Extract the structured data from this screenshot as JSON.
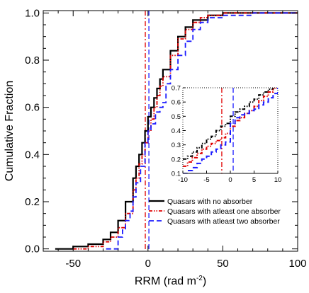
{
  "chart_data": [
    {
      "type": "line",
      "xlabel": "RRM (rad m",
      "xlabel_sup": "-2",
      "xlabel_close": ")",
      "ylabel": "Cumulative Fraction",
      "xlim": [
        -70,
        100
      ],
      "ylim": [
        -0.01,
        1.01
      ],
      "xticks": [
        -50,
        0,
        50,
        100
      ],
      "xtick_labels": [
        "-50",
        "0",
        "50",
        "100"
      ],
      "yticks": [
        0.0,
        0.2,
        0.4,
        0.6,
        0.8,
        1.0
      ],
      "ytick_labels": [
        "0.0",
        "0.2",
        "0.4",
        "0.6",
        "0.8",
        "1.0"
      ],
      "legend_position": "lower-right",
      "series": [
        {
          "name": "Quasars with no absorber",
          "color": "#000000",
          "style": "solid",
          "x": [
            -62,
            -50,
            -40,
            -30,
            -25,
            -20,
            -15,
            -10,
            -8,
            -6,
            -4,
            -2,
            0,
            2,
            4,
            6,
            8,
            10,
            15,
            20,
            25,
            30,
            40,
            50,
            60,
            100
          ],
          "y": [
            0.0,
            0.01,
            0.02,
            0.04,
            0.07,
            0.12,
            0.2,
            0.3,
            0.35,
            0.4,
            0.45,
            0.5,
            0.56,
            0.6,
            0.64,
            0.68,
            0.72,
            0.76,
            0.84,
            0.9,
            0.94,
            0.97,
            0.99,
            1.0,
            1.0,
            1.0
          ]
        },
        {
          "name": "Quasars with atleast one absorber",
          "color": "#e00000",
          "style": "dash-dot-dot",
          "x": [
            -50,
            -40,
            -30,
            -25,
            -20,
            -15,
            -10,
            -8,
            -6,
            -4,
            -2,
            0,
            2,
            4,
            6,
            8,
            10,
            15,
            20,
            25,
            30,
            35,
            40,
            50,
            100
          ],
          "y": [
            0.0,
            0.01,
            0.03,
            0.05,
            0.09,
            0.15,
            0.25,
            0.3,
            0.36,
            0.4,
            0.45,
            0.5,
            0.55,
            0.6,
            0.65,
            0.69,
            0.73,
            0.82,
            0.89,
            0.93,
            0.96,
            0.98,
            0.99,
            1.0,
            1.0
          ]
        },
        {
          "name": "Quasars with atleast two absorber",
          "color": "#1c1cff",
          "style": "dashed",
          "x": [
            -28,
            -20,
            -17,
            -15,
            -12,
            -10,
            -8,
            -5,
            -2,
            0,
            2,
            5,
            8,
            10,
            12,
            15,
            20,
            25,
            30,
            35,
            40,
            50,
            70,
            100
          ],
          "y": [
            0.0,
            0.05,
            0.08,
            0.12,
            0.16,
            0.22,
            0.28,
            0.35,
            0.45,
            0.5,
            0.53,
            0.58,
            0.6,
            0.62,
            0.7,
            0.76,
            0.82,
            0.88,
            0.93,
            0.96,
            0.98,
            0.99,
            1.0,
            1.0
          ]
        }
      ],
      "vlines": [
        {
          "series": 1,
          "x": -1.8,
          "color": "#e00000",
          "style": "dash-dot"
        },
        {
          "series": 2,
          "x": 0.6,
          "color": "#1c1cff",
          "style": "dashed"
        }
      ]
    },
    {
      "type": "line",
      "placement": "inset",
      "xlim": [
        -10,
        10
      ],
      "ylim": [
        0.1,
        0.7
      ],
      "xticks": [
        -10,
        -5,
        0,
        5,
        10
      ],
      "xtick_labels": [
        "-10",
        "-5",
        "0",
        "5",
        "10"
      ],
      "yticks": [
        0.1,
        0.2,
        0.3,
        0.4,
        0.5,
        0.6,
        0.7
      ],
      "ytick_labels": [
        "0.1",
        "0.2",
        "0.3",
        "0.4",
        "0.5",
        "0.6",
        "0.7"
      ],
      "grid": "dotted-vertical-edges",
      "series": [
        {
          "color": "#000000",
          "style": "dash-dot-dot",
          "x": [
            -10,
            -9,
            -8,
            -7,
            -6,
            -5,
            -4,
            -3,
            -2,
            -1,
            0,
            1,
            2,
            3,
            4,
            5,
            6,
            7,
            8,
            9,
            10
          ],
          "y": [
            0.2,
            0.22,
            0.25,
            0.28,
            0.31,
            0.34,
            0.36,
            0.4,
            0.43,
            0.45,
            0.5,
            0.53,
            0.55,
            0.57,
            0.6,
            0.62,
            0.65,
            0.67,
            0.69,
            0.7,
            0.7
          ]
        },
        {
          "color": "#e00000",
          "style": "dash-dot-dot",
          "x": [
            -10,
            -9,
            -8,
            -7,
            -6,
            -5,
            -4,
            -3,
            -2,
            -1,
            0,
            1,
            2,
            3,
            4,
            5,
            6,
            7,
            8,
            9,
            10
          ],
          "y": [
            0.15,
            0.18,
            0.21,
            0.24,
            0.27,
            0.29,
            0.31,
            0.33,
            0.35,
            0.38,
            0.43,
            0.47,
            0.49,
            0.52,
            0.54,
            0.57,
            0.61,
            0.64,
            0.67,
            0.7,
            0.7
          ]
        },
        {
          "color": "#1c1cff",
          "style": "dashed",
          "x": [
            -10,
            -9,
            -8,
            -7,
            -6,
            -5,
            -4,
            -3,
            -2,
            -1,
            0,
            1,
            2,
            3,
            4,
            5,
            6,
            7,
            8,
            9,
            10
          ],
          "y": [
            0.1,
            0.12,
            0.14,
            0.17,
            0.2,
            0.22,
            0.25,
            0.27,
            0.3,
            0.32,
            0.45,
            0.49,
            0.51,
            0.52,
            0.54,
            0.55,
            0.58,
            0.6,
            0.63,
            0.66,
            0.7
          ]
        }
      ],
      "vlines": [
        {
          "series": 1,
          "x": -1.8,
          "color": "#e00000",
          "style": "dash-dot"
        },
        {
          "series": 2,
          "x": 0.6,
          "color": "#1c1cff",
          "style": "dashed"
        }
      ]
    }
  ]
}
